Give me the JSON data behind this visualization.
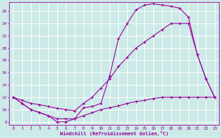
{
  "xlabel": "Windchill (Refroidissement éolien,°C)",
  "bg_color": "#cceae7",
  "grid_color": "#ffffff",
  "line_color": "#990099",
  "xlim": [
    -0.5,
    23.5
  ],
  "ylim": [
    7.5,
    27.5
  ],
  "yticks": [
    8,
    10,
    12,
    14,
    16,
    18,
    20,
    22,
    24,
    26
  ],
  "xticks": [
    0,
    1,
    2,
    3,
    4,
    5,
    6,
    7,
    8,
    9,
    10,
    11,
    12,
    13,
    14,
    15,
    16,
    17,
    18,
    19,
    20,
    21,
    22,
    23
  ],
  "curve1_x": [
    0,
    1,
    2,
    3,
    4,
    5,
    6,
    7,
    8,
    9,
    10,
    11,
    12,
    13,
    14,
    15,
    16,
    17,
    18,
    19,
    20,
    21,
    22,
    23
  ],
  "curve1_y": [
    12,
    11,
    10,
    9.5,
    9,
    8,
    8,
    8.5,
    10.3,
    10.5,
    11,
    15.5,
    21.5,
    24,
    26.2,
    27,
    27.2,
    27,
    26.8,
    26.5,
    25,
    19,
    15,
    12
  ],
  "curve2_x": [
    0,
    1,
    2,
    3,
    4,
    5,
    6,
    7,
    8,
    9,
    10,
    11,
    12,
    13,
    14,
    15,
    16,
    17,
    18,
    19,
    20,
    21,
    22,
    23
  ],
  "curve2_y": [
    12,
    11.5,
    11,
    10.8,
    10.5,
    10.2,
    10,
    9.8,
    11,
    12,
    13.5,
    15,
    17,
    18.5,
    20,
    21,
    22,
    23,
    24,
    24,
    24,
    19,
    15,
    12
  ],
  "curve3_x": [
    0,
    1,
    2,
    3,
    4,
    5,
    6,
    7,
    8,
    9,
    10,
    11,
    12,
    13,
    14,
    15,
    16,
    17,
    18,
    19,
    20,
    21,
    22,
    23
  ],
  "curve3_y": [
    12,
    11,
    10,
    9.5,
    9,
    8.5,
    8.5,
    8.5,
    9,
    9.5,
    10,
    10.3,
    10.6,
    11,
    11.3,
    11.5,
    11.8,
    12,
    12,
    12,
    12,
    12,
    12,
    12
  ]
}
